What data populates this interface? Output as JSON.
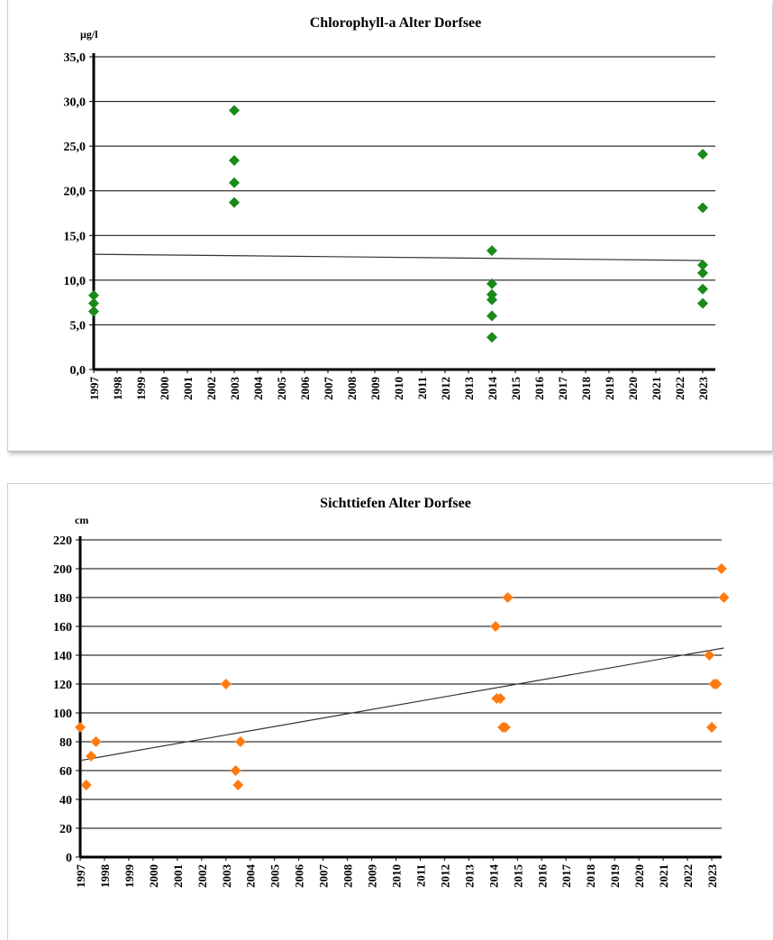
{
  "chart_data": [
    {
      "type": "scatter",
      "title": "Chlorophyll-a  Alter Dorfsee",
      "ylabel": "µg/l",
      "xlabel": "",
      "ylim": [
        0,
        35
      ],
      "yticks": [
        "0,0",
        "5,0",
        "10,0",
        "15,0",
        "20,0",
        "25,0",
        "30,0",
        "35,0"
      ],
      "xlim": [
        1997,
        2023
      ],
      "xticks": [
        "1997",
        "1998",
        "1999",
        "2000",
        "2001",
        "2002",
        "2003",
        "2004",
        "2005",
        "2006",
        "2007",
        "2008",
        "2009",
        "2010",
        "2011",
        "2012",
        "2013",
        "2014",
        "2015",
        "2016",
        "2017",
        "2018",
        "2019",
        "2020",
        "2021",
        "2022",
        "2023"
      ],
      "grid": true,
      "marker_color": "#1a8a1a",
      "points": [
        {
          "x": 1997,
          "y": 8.3
        },
        {
          "x": 1997,
          "y": 7.4
        },
        {
          "x": 1997,
          "y": 6.5
        },
        {
          "x": 2003,
          "y": 29.0
        },
        {
          "x": 2003,
          "y": 23.4
        },
        {
          "x": 2003,
          "y": 20.9
        },
        {
          "x": 2003,
          "y": 18.7
        },
        {
          "x": 2014,
          "y": 13.3
        },
        {
          "x": 2014,
          "y": 9.6
        },
        {
          "x": 2014,
          "y": 8.4
        },
        {
          "x": 2014,
          "y": 7.8
        },
        {
          "x": 2014,
          "y": 6.0
        },
        {
          "x": 2014,
          "y": 3.6
        },
        {
          "x": 2023,
          "y": 24.1
        },
        {
          "x": 2023,
          "y": 18.1
        },
        {
          "x": 2023,
          "y": 11.7
        },
        {
          "x": 2023,
          "y": 10.8
        },
        {
          "x": 2023,
          "y": 9.0
        },
        {
          "x": 2023,
          "y": 7.4
        }
      ],
      "trendline": {
        "x": [
          1997,
          2023
        ],
        "y": [
          12.9,
          12.2
        ]
      }
    },
    {
      "type": "scatter",
      "title": "Sichttiefen  Alter Dorfsee",
      "ylabel": "cm",
      "xlabel": "",
      "ylim": [
        0,
        220
      ],
      "yticks": [
        "0",
        "20",
        "40",
        "60",
        "80",
        "100",
        "120",
        "140",
        "160",
        "180",
        "200",
        "220"
      ],
      "xlim": [
        1997,
        2023
      ],
      "xticks": [
        "1997",
        "1998",
        "1999",
        "2000",
        "2001",
        "2002",
        "2003",
        "2004",
        "2005",
        "2006",
        "2007",
        "2008",
        "2009",
        "2010",
        "2011",
        "2012",
        "2013",
        "2014",
        "2015",
        "2016",
        "2017",
        "2018",
        "2019",
        "2020",
        "2021",
        "2022",
        "2023"
      ],
      "grid": true,
      "marker_color": "#ff7a10",
      "points": [
        {
          "x": 1997.0,
          "y": 90
        },
        {
          "x": 1997.25,
          "y": 50
        },
        {
          "x": 1997.45,
          "y": 70
        },
        {
          "x": 1997.65,
          "y": 80
        },
        {
          "x": 2003.0,
          "y": 120
        },
        {
          "x": 2003.4,
          "y": 60
        },
        {
          "x": 2003.5,
          "y": 50
        },
        {
          "x": 2003.6,
          "y": 80
        },
        {
          "x": 2014.1,
          "y": 160
        },
        {
          "x": 2014.15,
          "y": 110
        },
        {
          "x": 2014.3,
          "y": 110
        },
        {
          "x": 2014.4,
          "y": 90
        },
        {
          "x": 2014.5,
          "y": 90
        },
        {
          "x": 2014.6,
          "y": 180
        },
        {
          "x": 2022.9,
          "y": 140
        },
        {
          "x": 2023.0,
          "y": 90
        },
        {
          "x": 2023.1,
          "y": 120
        },
        {
          "x": 2023.2,
          "y": 120
        },
        {
          "x": 2023.4,
          "y": 200
        },
        {
          "x": 2023.5,
          "y": 180
        }
      ],
      "trendline": {
        "x": [
          1997,
          2023.5
        ],
        "y": [
          67,
          145
        ]
      }
    }
  ]
}
